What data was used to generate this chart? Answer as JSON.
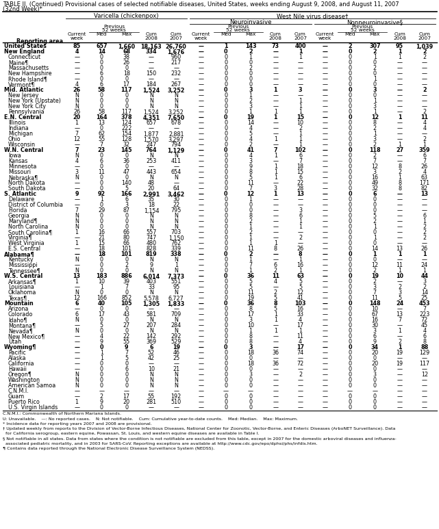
{
  "title_line1": "TABLE II. (Continued) Provisional cases of selected notifiable diseases, United States, weeks ending August 9, 2008, and August 11, 2007",
  "title_line2": "(32nd Week)*",
  "rows": [
    [
      "United States",
      "85",
      "657",
      "1,660",
      "18,163",
      "26,760",
      "—",
      "1",
      "143",
      "73",
      "400",
      "—",
      "2",
      "307",
      "95",
      "1,039"
    ],
    [
      "New England",
      "4",
      "14",
      "68",
      "334",
      "1,676",
      "—",
      "0",
      "2",
      "—",
      "1",
      "—",
      "0",
      "2",
      "1",
      "2"
    ],
    [
      "Connecticut",
      "—",
      "0",
      "38",
      "—",
      "960",
      "—",
      "0",
      "1",
      "—",
      "1",
      "—",
      "0",
      "1",
      "1",
      "2"
    ],
    [
      "Maine¶",
      "—",
      "0",
      "26",
      "—",
      "217",
      "—",
      "0",
      "0",
      "—",
      "—",
      "—",
      "0",
      "0",
      "—",
      "—"
    ],
    [
      "Massachusetts",
      "—",
      "0",
      "0",
      "—",
      "—",
      "—",
      "0",
      "2",
      "—",
      "—",
      "—",
      "0",
      "2",
      "—",
      "—"
    ],
    [
      "New Hampshire",
      "—",
      "6",
      "18",
      "150",
      "232",
      "—",
      "0",
      "0",
      "—",
      "—",
      "—",
      "0",
      "0",
      "—",
      "—"
    ],
    [
      "Rhode Island¶",
      "—",
      "0",
      "0",
      "—",
      "—",
      "—",
      "0",
      "0",
      "—",
      "—",
      "—",
      "0",
      "1",
      "—",
      "—"
    ],
    [
      "Vermont¶",
      "4",
      "6",
      "17",
      "184",
      "267",
      "—",
      "0",
      "0",
      "—",
      "—",
      "—",
      "0",
      "0",
      "—",
      "—"
    ],
    [
      "Mid. Atlantic",
      "26",
      "58",
      "117",
      "1,524",
      "3,252",
      "—",
      "0",
      "3",
      "1",
      "3",
      "—",
      "0",
      "3",
      "—",
      "2"
    ],
    [
      "New Jersey",
      "N",
      "0",
      "0",
      "N",
      "N",
      "—",
      "0",
      "1",
      "—",
      "—",
      "—",
      "0",
      "0",
      "—",
      "—"
    ],
    [
      "New York (Upstate)",
      "N",
      "0",
      "0",
      "N",
      "N",
      "—",
      "0",
      "2",
      "—",
      "1",
      "—",
      "0",
      "1",
      "—",
      "—"
    ],
    [
      "New York City",
      "N",
      "0",
      "0",
      "N",
      "N",
      "—",
      "0",
      "3",
      "—",
      "1",
      "—",
      "0",
      "3",
      "—",
      "—"
    ],
    [
      "Pennsylvania",
      "26",
      "58",
      "117",
      "1,524",
      "3,252",
      "—",
      "0",
      "1",
      "1",
      "1",
      "—",
      "0",
      "1",
      "—",
      "2"
    ],
    [
      "E.N. Central",
      "20",
      "164",
      "378",
      "4,351",
      "7,650",
      "—",
      "0",
      "19",
      "1",
      "15",
      "—",
      "0",
      "12",
      "1",
      "11"
    ],
    [
      "Illinois",
      "1",
      "13",
      "124",
      "657",
      "678",
      "—",
      "0",
      "14",
      "—",
      "10",
      "—",
      "0",
      "8",
      "—",
      "4"
    ],
    [
      "Indiana",
      "—",
      "0",
      "222",
      "—",
      "—",
      "—",
      "0",
      "4",
      "—",
      "2",
      "—",
      "0",
      "2",
      "—",
      "4"
    ],
    [
      "Michigan",
      "7",
      "62",
      "154",
      "1,877",
      "2,881",
      "—",
      "0",
      "5",
      "—",
      "1",
      "—",
      "0",
      "1",
      "—",
      "—"
    ],
    [
      "Ohio",
      "12",
      "55",
      "128",
      "1,570",
      "3,297",
      "—",
      "0",
      "4",
      "1",
      "1",
      "—",
      "0",
      "3",
      "—",
      "2"
    ],
    [
      "Wisconsin",
      "—",
      "7",
      "32",
      "247",
      "794",
      "—",
      "0",
      "2",
      "—",
      "1",
      "—",
      "0",
      "2",
      "1",
      "1"
    ],
    [
      "W.N. Central",
      "7",
      "23",
      "145",
      "764",
      "1,129",
      "—",
      "0",
      "41",
      "7",
      "102",
      "—",
      "0",
      "118",
      "27",
      "359"
    ],
    [
      "Iowa",
      "N",
      "0",
      "0",
      "N",
      "N",
      "—",
      "0",
      "4",
      "1",
      "6",
      "—",
      "0",
      "2",
      "—",
      "6"
    ],
    [
      "Kansas",
      "4",
      "6",
      "36",
      "253",
      "411",
      "—",
      "0",
      "3",
      "—",
      "7",
      "—",
      "0",
      "7",
      "—",
      "7"
    ],
    [
      "Minnesota",
      "—",
      "0",
      "0",
      "—",
      "—",
      "—",
      "0",
      "9",
      "1",
      "18",
      "—",
      "0",
      "12",
      "8",
      "26"
    ],
    [
      "Missouri",
      "3",
      "11",
      "47",
      "443",
      "654",
      "—",
      "0",
      "8",
      "1",
      "15",
      "—",
      "0",
      "3",
      "2",
      "4"
    ],
    [
      "Nebraska¶",
      "N",
      "0",
      "0",
      "N",
      "N",
      "—",
      "0",
      "5",
      "1",
      "6",
      "—",
      "0",
      "16",
      "1",
      "63"
    ],
    [
      "North Dakota",
      "—",
      "0",
      "140",
      "48",
      "—",
      "—",
      "0",
      "11",
      "—",
      "22",
      "—",
      "0",
      "49",
      "8",
      "171"
    ],
    [
      "South Dakota",
      "—",
      "0",
      "5",
      "20",
      "64",
      "—",
      "0",
      "7",
      "3",
      "28",
      "—",
      "0",
      "32",
      "8",
      "82"
    ],
    [
      "S. Atlantic",
      "9",
      "92",
      "166",
      "2,991",
      "3,462",
      "—",
      "0",
      "12",
      "1",
      "13",
      "—",
      "0",
      "6",
      "—",
      "13"
    ],
    [
      "Delaware",
      "—",
      "1",
      "6",
      "35",
      "30",
      "—",
      "0",
      "1",
      "—",
      "—",
      "—",
      "0",
      "0",
      "—",
      "—"
    ],
    [
      "District of Columbia",
      "—",
      "0",
      "3",
      "18",
      "22",
      "—",
      "0",
      "0",
      "—",
      "—",
      "—",
      "0",
      "0",
      "—",
      "—"
    ],
    [
      "Florida",
      "7",
      "29",
      "87",
      "1,154",
      "795",
      "—",
      "0",
      "0",
      "—",
      "3",
      "—",
      "0",
      "0",
      "—",
      "—"
    ],
    [
      "Georgia",
      "N",
      "0",
      "0",
      "N",
      "N",
      "—",
      "0",
      "8",
      "—",
      "6",
      "—",
      "0",
      "5",
      "—",
      "6"
    ],
    [
      "Maryland¶",
      "N",
      "0",
      "0",
      "N",
      "N",
      "—",
      "0",
      "2",
      "—",
      "1",
      "—",
      "0",
      "2",
      "—",
      "1"
    ],
    [
      "North Carolina",
      "N",
      "0",
      "0",
      "N",
      "N",
      "—",
      "0",
      "1",
      "—",
      "1",
      "—",
      "0",
      "1",
      "—",
      "2"
    ],
    [
      "South Carolina¶",
      "1",
      "16",
      "66",
      "557",
      "703",
      "—",
      "0",
      "2",
      "—",
      "—",
      "—",
      "0",
      "0",
      "—",
      "2"
    ],
    [
      "Virginia¶",
      "—",
      "21",
      "80",
      "747",
      "1,150",
      "—",
      "0",
      "1",
      "—",
      "2",
      "—",
      "0",
      "1",
      "—",
      "2"
    ],
    [
      "West Virginia",
      "1",
      "15",
      "66",
      "480",
      "762",
      "—",
      "0",
      "1",
      "1",
      "—",
      "—",
      "0",
      "0",
      "—",
      "—"
    ],
    [
      "E.S. Central",
      "—",
      "18",
      "101",
      "828",
      "339",
      "—",
      "0",
      "11",
      "8",
      "26",
      "—",
      "0",
      "14",
      "13",
      "26"
    ],
    [
      "Alabama¶",
      "—",
      "18",
      "101",
      "819",
      "338",
      "—",
      "0",
      "2",
      "—",
      "8",
      "—",
      "0",
      "1",
      "1",
      "1"
    ],
    [
      "Kentucky",
      "N",
      "0",
      "0",
      "N",
      "N",
      "—",
      "0",
      "1",
      "—",
      "1",
      "—",
      "0",
      "0",
      "—",
      "—"
    ],
    [
      "Mississippi",
      "—",
      "0",
      "2",
      "9",
      "1",
      "—",
      "0",
      "7",
      "6",
      "16",
      "—",
      "0",
      "12",
      "11",
      "24"
    ],
    [
      "Tennessee¶",
      "N",
      "0",
      "0",
      "N",
      "N",
      "—",
      "0",
      "1",
      "2",
      "1",
      "—",
      "0",
      "2",
      "1",
      "1"
    ],
    [
      "W.S. Central",
      "13",
      "183",
      "886",
      "6,014",
      "7,373",
      "—",
      "0",
      "36",
      "11",
      "63",
      "—",
      "0",
      "19",
      "10",
      "44"
    ],
    [
      "Arkansas¶",
      "1",
      "10",
      "39",
      "403",
      "551",
      "—",
      "0",
      "5",
      "4",
      "5",
      "—",
      "0",
      "2",
      "—",
      "3"
    ],
    [
      "Louisiana",
      "—",
      "1",
      "7",
      "33",
      "95",
      "—",
      "0",
      "5",
      "—",
      "5",
      "—",
      "0",
      "3",
      "2",
      "2"
    ],
    [
      "Oklahoma",
      "N",
      "0",
      "0",
      "N",
      "N",
      "—",
      "0",
      "11",
      "2",
      "12",
      "—",
      "0",
      "7",
      "3",
      "14"
    ],
    [
      "Texas¶",
      "12",
      "166",
      "852",
      "5,578",
      "6,727",
      "—",
      "0",
      "19",
      "5",
      "41",
      "—",
      "0",
      "11",
      "5",
      "25"
    ],
    [
      "Mountain",
      "6",
      "40",
      "105",
      "1,305",
      "1,833",
      "—",
      "0",
      "36",
      "8",
      "103",
      "—",
      "0",
      "148",
      "24",
      "453"
    ],
    [
      "Arizona",
      "—",
      "0",
      "0",
      "—",
      "—",
      "—",
      "0",
      "8",
      "5",
      "16",
      "—",
      "0",
      "10",
      "—",
      "7"
    ],
    [
      "Colorado",
      "6",
      "17",
      "43",
      "581",
      "709",
      "—",
      "0",
      "17",
      "1",
      "33",
      "—",
      "0",
      "67",
      "13",
      "223"
    ],
    [
      "Idaho¶",
      "N",
      "0",
      "0",
      "N",
      "N",
      "—",
      "0",
      "3",
      "1",
      "4",
      "—",
      "0",
      "16",
      "7",
      "72"
    ],
    [
      "Montana¶",
      "—",
      "5",
      "27",
      "207",
      "284",
      "—",
      "0",
      "10",
      "—",
      "17",
      "—",
      "0",
      "30",
      "—",
      "45"
    ],
    [
      "Nevada¶",
      "N",
      "0",
      "0",
      "N",
      "N",
      "—",
      "0",
      "1",
      "1",
      "1",
      "—",
      "0",
      "3",
      "1",
      "4"
    ],
    [
      "New Mexico¶",
      "—",
      "4",
      "22",
      "142",
      "292",
      "—",
      "0",
      "8",
      "—",
      "11",
      "—",
      "0",
      "6",
      "—",
      "6"
    ],
    [
      "Utah",
      "—",
      "9",
      "55",
      "369",
      "529",
      "—",
      "0",
      "8",
      "—",
      "4",
      "—",
      "0",
      "9",
      "2",
      "8"
    ],
    [
      "Wyoming¶",
      "—",
      "0",
      "9",
      "6",
      "19",
      "—",
      "0",
      "3",
      "—",
      "17",
      "—",
      "0",
      "34",
      "1",
      "88"
    ],
    [
      "Pacific",
      "—",
      "1",
      "7",
      "52",
      "46",
      "—",
      "0",
      "18",
      "36",
      "74",
      "—",
      "0",
      "20",
      "19",
      "129"
    ],
    [
      "Alaska",
      "—",
      "1",
      "5",
      "42",
      "25",
      "—",
      "0",
      "0",
      "—",
      "—",
      "—",
      "0",
      "0",
      "—",
      "—"
    ],
    [
      "California",
      "—",
      "0",
      "0",
      "—",
      "—",
      "—",
      "0",
      "18",
      "36",
      "72",
      "—",
      "0",
      "20",
      "19",
      "117"
    ],
    [
      "Hawaii",
      "—",
      "0",
      "6",
      "10",
      "21",
      "—",
      "0",
      "0",
      "—",
      "—",
      "—",
      "0",
      "0",
      "—",
      "—"
    ],
    [
      "Oregon¶",
      "N",
      "0",
      "0",
      "N",
      "N",
      "—",
      "0",
      "3",
      "—",
      "2",
      "—",
      "0",
      "3",
      "—",
      "12"
    ],
    [
      "Washington",
      "N",
      "0",
      "0",
      "N",
      "N",
      "—",
      "0",
      "0",
      "—",
      "—",
      "—",
      "0",
      "0",
      "—",
      "—"
    ],
    [
      "American Samoa",
      "N",
      "0",
      "0",
      "N",
      "N",
      "—",
      "0",
      "0",
      "—",
      "—",
      "—",
      "0",
      "0",
      "—",
      "—"
    ],
    [
      "C.N.M.I.",
      "—",
      "—",
      "—",
      "—",
      "—",
      "—",
      "—",
      "—",
      "—",
      "—",
      "—",
      "—",
      "—",
      "—",
      "—"
    ],
    [
      "Guam",
      "—",
      "2",
      "17",
      "55",
      "192",
      "—",
      "0",
      "0",
      "—",
      "—",
      "—",
      "0",
      "0",
      "—",
      "—"
    ],
    [
      "Puerto Rico",
      "1",
      "9",
      "20",
      "281",
      "510",
      "—",
      "0",
      "0",
      "—",
      "—",
      "—",
      "0",
      "0",
      "—",
      "—"
    ],
    [
      "U.S. Virgin Islands",
      "—",
      "0",
      "0",
      "—",
      "—",
      "—",
      "0",
      "0",
      "—",
      "—",
      "—",
      "0",
      "0",
      "—",
      "—"
    ]
  ],
  "bold_rows": [
    0,
    1,
    8,
    13,
    19,
    27,
    38,
    42,
    47,
    55
  ],
  "footnotes": [
    "C.N.M.I.: Commonwealth of Northern Mariana Islands.",
    "U: Unavailable.    —: No reported cases.    N: Not notifiable.    Cum: Cumulative year-to-date counts.    Med: Median.    Max: Maximum.",
    "* Incidence data for reporting years 2007 and 2008 are provisional.",
    "† Updated weekly from reports to the Division of Vector-Borne Infectious Diseases, National Center for Zoonotic, Vector-Borne, and Enteric Diseases (ArboNET Surveillance). Data",
    "  for California serogroup, eastern equine, Powassan, St. Louis, and western equine diseases are available in Table I.",
    "§ Not notifiable in all states. Data from states where the condition is not notifiable are excluded from this table, except in 2007 for the domestic arboviral diseases and influenza-",
    "  associated pediatric mortality, and in 2003 for SARS-CoV. Reporting exceptions are available at http://www.cdc.gov/epo/dphsi/phs/infdis.htm.",
    "¶ Contains data reported through the National Electronic Disease Surveillance System (NEDSS)."
  ]
}
